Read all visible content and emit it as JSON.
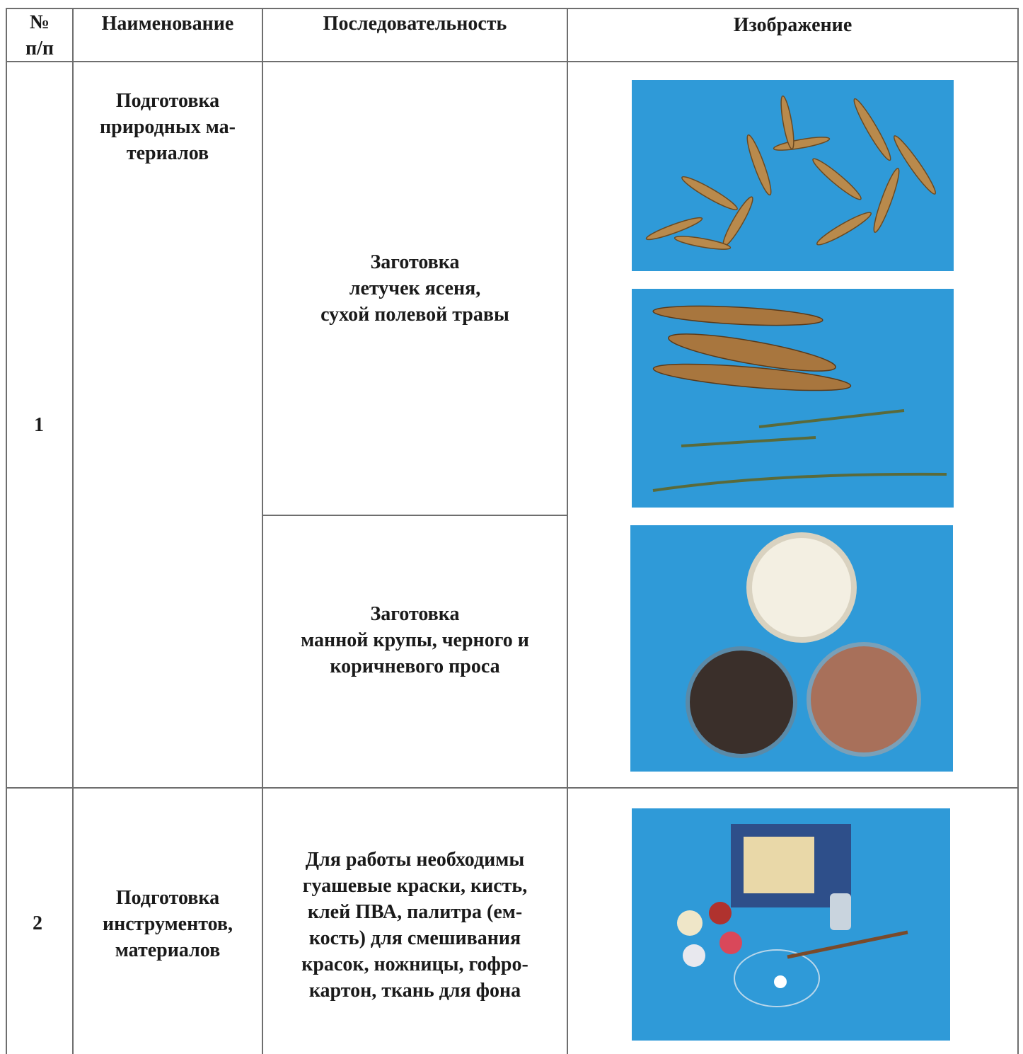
{
  "table": {
    "header": [
      "№\nп/п",
      "Наименование",
      "Последовательность",
      "Изображение"
    ],
    "rows": [
      {
        "number": "1",
        "name": "Подготовка\nприродных ма-\nтериалов",
        "steps": [
          "Заготовка\nлетучек ясеня,\nсухой полевой травы",
          "Заготовка\nманной крупы, черного и\nкоричневого  проса"
        ]
      },
      {
        "number": "2",
        "name": "Подготовка\nинструментов,\nматериалов",
        "steps": [
          "Для работы необходимы\nгуашевые краски, кисть,\nклей ПВА, палитра (ем-\nкость) для смешивания\nкрасок, ножницы, гофро-\nкартон, ткань для фона"
        ]
      }
    ]
  }
}
